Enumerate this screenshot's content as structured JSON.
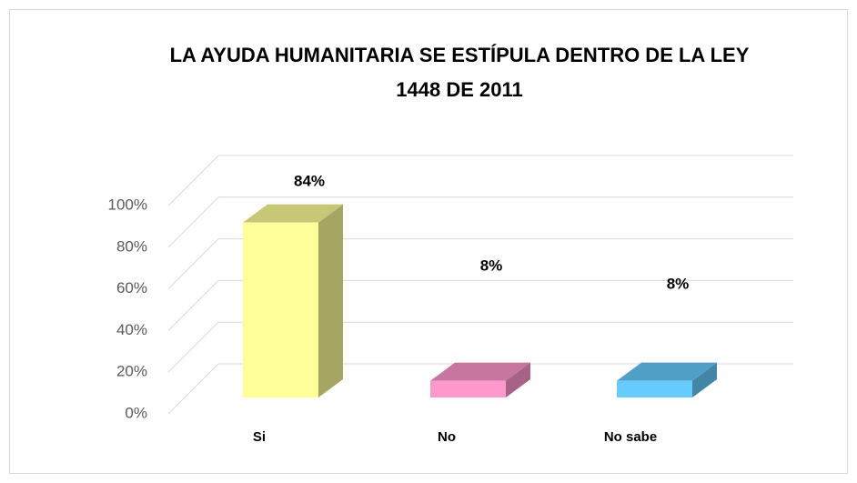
{
  "chart_data": {
    "type": "bar3d",
    "title": "LA AYUDA HUMANITARIA SE ESTÍPULA DENTRO DE  LA LEY",
    "subtitle": "1448 DE 2011",
    "categories": [
      "Si",
      "No",
      "No sabe"
    ],
    "values": [
      84,
      8,
      8
    ],
    "value_labels": [
      "84%",
      "8%",
      "8%"
    ],
    "colors": [
      "#ffff99",
      "#ff99cc",
      "#66ccff"
    ],
    "ylim": [
      0,
      100
    ],
    "yticks": [
      {
        "value": 0,
        "label": "0%"
      },
      {
        "value": 20,
        "label": "20%"
      },
      {
        "value": 40,
        "label": "40%"
      },
      {
        "value": 60,
        "label": "60%"
      },
      {
        "value": 80,
        "label": "80%"
      },
      {
        "value": 100,
        "label": "100%"
      }
    ],
    "grid": true
  }
}
